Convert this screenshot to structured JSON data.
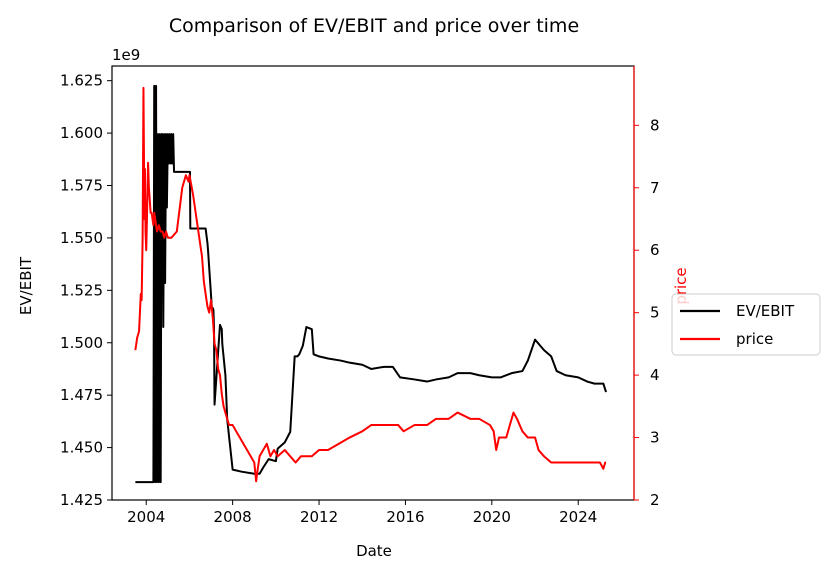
{
  "chart_data": {
    "type": "line",
    "title": "Comparison of EV/EBIT and price over time",
    "xlabel": "Date",
    "y_left_label": "EV/EBIT",
    "y_right_label": "price",
    "y_left_offset_text": "1e9",
    "x_range": [
      "2002-06-01",
      "2026-08-01"
    ],
    "y_left_range": [
      1.425,
      1.632
    ],
    "y_right_range": [
      2.0,
      8.95
    ],
    "x_ticks": [
      "2004",
      "2008",
      "2012",
      "2016",
      "2020",
      "2024"
    ],
    "y_left_ticks": [
      "1.425",
      "1.450",
      "1.475",
      "1.500",
      "1.525",
      "1.550",
      "1.575",
      "1.600",
      "1.625"
    ],
    "y_right_ticks": [
      "2",
      "3",
      "4",
      "5",
      "6",
      "7",
      "8"
    ],
    "legend_position": "right",
    "colors": {
      "ev_ebit": "#000000",
      "price": "#ff0000"
    },
    "series": [
      {
        "name": "EV/EBIT",
        "axis": "left",
        "x": [
          "2003-07-01",
          "2004-05-01",
          "2004-05-15",
          "2004-06-01",
          "2004-06-15",
          "2004-07-01",
          "2004-07-15",
          "2004-08-01",
          "2004-08-15",
          "2004-09-01",
          "2004-09-15",
          "2004-10-01",
          "2004-10-15",
          "2004-11-01",
          "2004-11-15",
          "2004-12-01",
          "2004-12-15",
          "2005-01-01",
          "2005-01-15",
          "2005-02-01",
          "2005-02-15",
          "2005-03-01",
          "2005-03-15",
          "2005-04-01",
          "2005-04-15",
          "2005-05-01",
          "2005-05-15",
          "2005-06-01",
          "2005-06-20",
          "2005-10-01",
          "2006-01-10",
          "2006-01-15",
          "2006-06-01",
          "2006-06-15",
          "2006-09-01",
          "2006-10-01",
          "2006-11-01",
          "2006-11-10",
          "2007-01-15",
          "2007-02-01",
          "2007-02-10",
          "2007-02-20",
          "2007-03-01",
          "2007-06-01",
          "2007-07-01",
          "2007-07-10",
          "2007-09-01",
          "2007-10-01",
          "2008-01-01",
          "2008-06-01",
          "2009-01-01",
          "2009-04-01",
          "2009-06-01",
          "2009-09-01",
          "2010-01-01",
          "2010-02-01",
          "2010-06-01",
          "2010-09-01",
          "2010-11-15",
          "2011-01-01",
          "2011-02-01",
          "2011-04-01",
          "2011-06-01",
          "2011-09-01",
          "2011-10-01",
          "2012-01-01",
          "2012-06-01",
          "2013-01-01",
          "2013-06-01",
          "2014-01-01",
          "2014-06-01",
          "2015-01-01",
          "2015-06-01",
          "2015-10-01",
          "2016-06-01",
          "2017-01-01",
          "2017-06-01",
          "2018-01-01",
          "2018-06-01",
          "2019-01-01",
          "2019-06-01",
          "2020-01-01",
          "2020-06-01",
          "2020-12-01",
          "2021-06-01",
          "2021-09-01",
          "2021-11-01",
          "2022-01-01",
          "2022-06-01",
          "2022-10-01",
          "2023-01-01",
          "2023-06-01",
          "2024-01-01",
          "2024-06-01",
          "2024-10-01",
          "2025-01-01",
          "2025-03-01",
          "2025-04-15"
        ],
        "values": [
          1.4335,
          1.4335,
          1.6225,
          1.4335,
          1.6225,
          1.4335,
          1.5995,
          1.4335,
          1.5995,
          1.4335,
          1.5995,
          1.5995,
          1.5075,
          1.5995,
          1.5285,
          1.5995,
          1.5645,
          1.5995,
          1.5855,
          1.5995,
          1.5855,
          1.5995,
          1.5855,
          1.5995,
          1.5815,
          1.5815,
          1.5815,
          1.5815,
          1.5815,
          1.5815,
          1.5815,
          1.5545,
          1.5545,
          1.5545,
          1.5545,
          1.5545,
          1.5475,
          1.5445,
          1.5165,
          1.5165,
          1.5155,
          1.5075,
          1.4705,
          1.5085,
          1.5065,
          1.4995,
          1.4845,
          1.4635,
          1.4395,
          1.4385,
          1.4375,
          1.4375,
          1.4405,
          1.4445,
          1.4435,
          1.4495,
          1.4525,
          1.4575,
          1.4935,
          1.4935,
          1.4945,
          1.4985,
          1.5075,
          1.5065,
          1.4945,
          1.4935,
          1.4925,
          1.4915,
          1.4905,
          1.4895,
          1.4875,
          1.4885,
          1.4885,
          1.4835,
          1.4825,
          1.4815,
          1.4825,
          1.4835,
          1.4855,
          1.4855,
          1.4845,
          1.4835,
          1.4835,
          1.4855,
          1.4865,
          1.4915,
          1.4965,
          1.5015,
          1.4965,
          1.4935,
          1.4865,
          1.4845,
          1.4835,
          1.4815,
          1.4805,
          1.4805,
          1.4805,
          1.4765
        ]
      },
      {
        "name": "price",
        "axis": "right",
        "x": [
          "2003-07-01",
          "2003-08-01",
          "2003-09-01",
          "2003-10-01",
          "2003-10-15",
          "2003-11-01",
          "2003-11-15",
          "2003-12-01",
          "2003-12-10",
          "2003-12-20",
          "2004-01-01",
          "2004-01-15",
          "2004-02-01",
          "2004-02-15",
          "2004-03-01",
          "2004-03-15",
          "2004-04-01",
          "2004-05-01",
          "2004-05-15",
          "2004-06-01",
          "2004-07-01",
          "2004-08-01",
          "2004-09-01",
          "2004-10-01",
          "2004-11-01",
          "2004-12-01",
          "2005-01-01",
          "2005-03-01",
          "2005-06-01",
          "2005-09-01",
          "2005-11-01",
          "2005-12-15",
          "2006-01-01",
          "2006-03-01",
          "2006-05-01",
          "2006-07-01",
          "2006-08-01",
          "2006-09-01",
          "2006-10-01",
          "2006-11-01",
          "2006-12-01",
          "2007-01-01",
          "2007-02-01",
          "2007-03-01",
          "2007-04-01",
          "2007-05-01",
          "2007-06-01",
          "2007-07-01",
          "2007-08-01",
          "2007-10-01",
          "2007-11-01",
          "2008-01-01",
          "2008-03-01",
          "2008-05-01",
          "2008-07-01",
          "2008-09-01",
          "2008-11-01",
          "2009-01-01",
          "2009-02-01",
          "2009-03-01",
          "2009-04-01",
          "2009-06-01",
          "2009-08-01",
          "2009-10-01",
          "2009-12-01",
          "2010-02-01",
          "2010-06-01",
          "2010-09-01",
          "2010-12-01",
          "2011-03-01",
          "2011-06-01",
          "2011-09-01",
          "2012-01-01",
          "2012-06-01",
          "2012-12-01",
          "2013-06-01",
          "2014-01-01",
          "2014-06-01",
          "2015-01-01",
          "2015-06-01",
          "2015-09-01",
          "2015-12-01",
          "2016-06-01",
          "2017-01-01",
          "2017-06-01",
          "2018-01-01",
          "2018-06-01",
          "2019-01-01",
          "2019-06-01",
          "2019-12-01",
          "2020-02-01",
          "2020-03-15",
          "2020-05-01",
          "2020-09-01",
          "2021-01-01",
          "2021-03-01",
          "2021-06-01",
          "2021-09-01",
          "2022-01-01",
          "2022-03-01",
          "2022-06-01",
          "2022-10-01",
          "2023-01-01",
          "2023-06-01",
          "2024-01-01",
          "2024-06-01",
          "2025-01-01",
          "2025-03-01",
          "2025-04-01",
          "2025-04-15"
        ],
        "values": [
          4.4,
          4.6,
          4.7,
          5.3,
          5.2,
          6.2,
          8.6,
          6.5,
          7.3,
          6.3,
          6.0,
          6.6,
          7.4,
          7.0,
          6.8,
          6.6,
          6.6,
          6.4,
          6.6,
          6.5,
          6.3,
          6.4,
          6.3,
          6.3,
          6.2,
          6.3,
          6.2,
          6.2,
          6.3,
          7.0,
          7.2,
          7.1,
          7.2,
          6.9,
          6.5,
          6.1,
          5.9,
          5.5,
          5.3,
          5.1,
          5.0,
          5.2,
          4.9,
          4.5,
          4.4,
          4.1,
          4.0,
          3.7,
          3.5,
          3.3,
          3.2,
          3.2,
          3.1,
          3.0,
          2.9,
          2.8,
          2.7,
          2.6,
          2.3,
          2.5,
          2.7,
          2.8,
          2.9,
          2.7,
          2.8,
          2.7,
          2.8,
          2.7,
          2.6,
          2.7,
          2.7,
          2.7,
          2.8,
          2.8,
          2.9,
          3.0,
          3.1,
          3.2,
          3.2,
          3.2,
          3.2,
          3.1,
          3.2,
          3.2,
          3.3,
          3.3,
          3.4,
          3.3,
          3.3,
          3.2,
          3.1,
          2.8,
          3.0,
          3.0,
          3.4,
          3.3,
          3.1,
          3.0,
          3.0,
          2.8,
          2.7,
          2.6,
          2.6,
          2.6,
          2.6,
          2.6,
          2.6,
          2.5,
          2.6,
          2.6
        ]
      }
    ]
  }
}
